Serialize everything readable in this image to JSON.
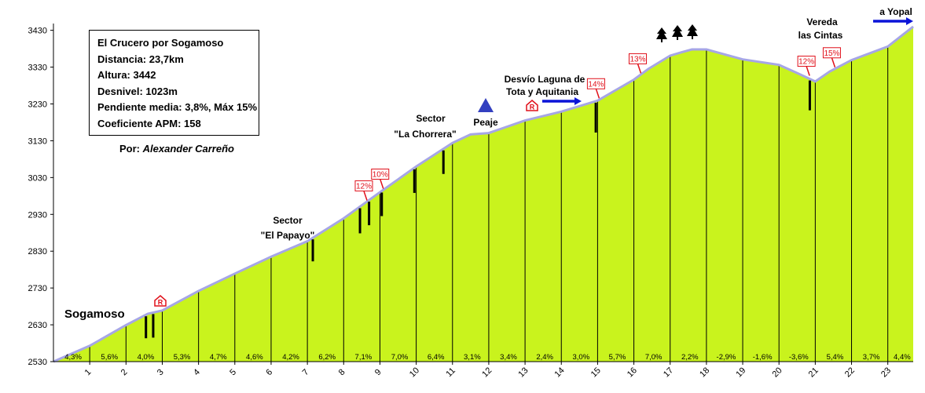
{
  "info": {
    "title": "El Crucero por Sogamoso",
    "distance": "Distancia: 23,7km",
    "altitude": "Altura: 3442",
    "elevation_gain": "Desnivel: 1023m",
    "slope": "Pendiente media: 3,8%, Máx 15%",
    "apm": "Coeficiente APM: 158",
    "author_prefix": "Por:",
    "author_name": "Alexander Carreño"
  },
  "colors": {
    "fill": "#c9f31d",
    "outline": "#a6a6e6",
    "steep": "#e0101a",
    "arrow": "#0b14d8",
    "peak": "#3340c0"
  },
  "chart_data": {
    "type": "area",
    "title": "",
    "xlabel": "",
    "ylabel": "",
    "xlim": [
      0,
      23.7
    ],
    "ylim": [
      2530,
      3450
    ],
    "yticks": [
      "2530",
      "2630",
      "2730",
      "2830",
      "2930",
      "3030",
      "3130",
      "3230",
      "3330",
      "3430"
    ],
    "xticks": [
      "1",
      "2",
      "3",
      "4",
      "5",
      "6",
      "7",
      "8",
      "9",
      "10",
      "11",
      "12",
      "13",
      "14",
      "15",
      "16",
      "17",
      "18",
      "19",
      "20",
      "21",
      "22",
      "23"
    ],
    "km_markers": [
      1,
      2,
      3,
      4,
      5,
      6,
      7,
      8,
      9,
      10,
      11,
      12,
      13,
      14,
      15,
      16,
      17,
      18,
      19,
      20,
      21,
      22,
      23
    ],
    "profile": {
      "km": [
        0,
        1,
        2,
        2.6,
        3,
        4,
        5,
        6,
        7,
        8,
        9,
        10,
        11,
        11.5,
        12,
        13,
        14,
        15,
        16,
        16.4,
        17,
        17.3,
        17.6,
        18,
        18.3,
        19,
        20,
        20.5,
        21,
        21.4,
        22,
        23,
        23.7
      ],
      "elevation": [
        2530,
        2573,
        2629,
        2660,
        2669,
        2722,
        2769,
        2815,
        2857,
        2919,
        2990,
        3060,
        3124,
        3147,
        3151,
        3185,
        3209,
        3239,
        3296,
        3325,
        3361,
        3370,
        3378,
        3378,
        3370,
        3351,
        3336,
        3314,
        3291,
        3318,
        3349,
        3386,
        3440
      ]
    },
    "segment_grades": [
      "4,3%",
      "5,6%",
      "4,0%",
      "5,3%",
      "4,7%",
      "4,6%",
      "4,2%",
      "6,2%",
      "7,1%",
      "7,0%",
      "6,4%",
      "3,1%",
      "3,4%",
      "2,4%",
      "3,0%",
      "5,7%",
      "7,0%",
      "2,2%",
      "-2,9%",
      "-1,6%",
      "-3,6%",
      "5,4%",
      "3,7%",
      "4,4%"
    ],
    "steep_labels": [
      {
        "label": "12%",
        "km": 8.6
      },
      {
        "label": "10%",
        "km": 9.05
      },
      {
        "label": "14%",
        "km": 15.0
      },
      {
        "label": "13%",
        "km": 16.15
      },
      {
        "label": "12%",
        "km": 20.8
      },
      {
        "label": "15%",
        "km": 21.5
      }
    ],
    "annotations": {
      "start": "Sogamoso",
      "sector1_line1": "Sector",
      "sector1_line2": "\"El Papayo\"",
      "sector2_line1": "Sector",
      "sector2_line2": "\"La Chorrera\"",
      "toll": "Peaje",
      "junction_line1": "Desvío Laguna de",
      "junction_line2": "Tota  y Aquitania",
      "village_line1": "Vereda",
      "village_line2": "las Cintas",
      "end": "a Yopal",
      "hotel_symbol": "R"
    }
  }
}
